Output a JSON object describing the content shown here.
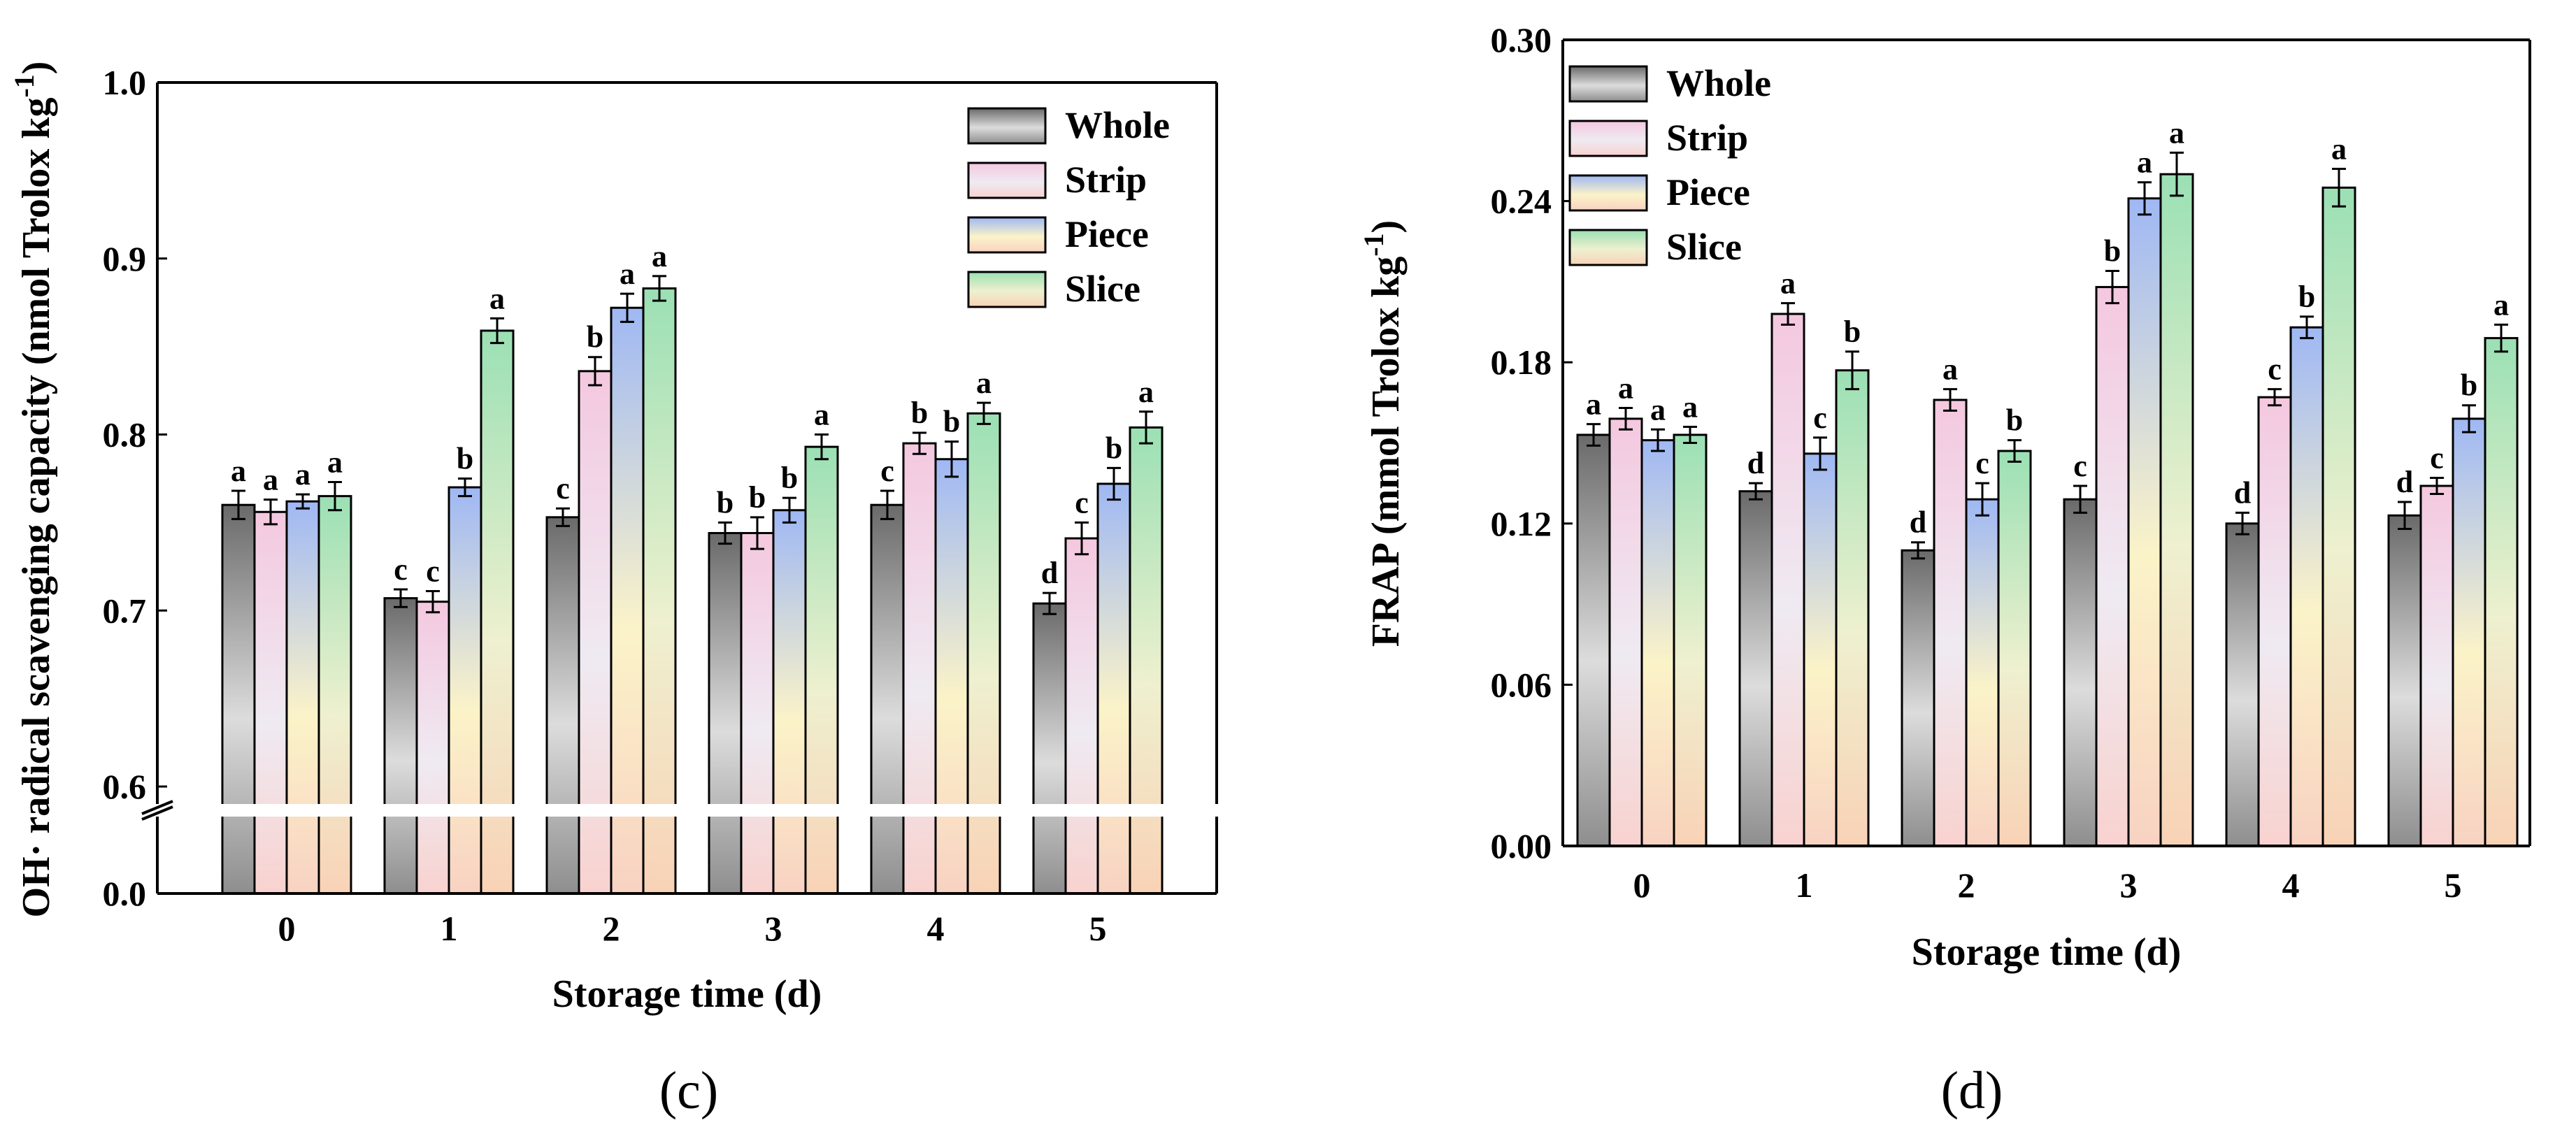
{
  "series_names": [
    "Whole",
    "Strip",
    "Piece",
    "Slice"
  ],
  "colors": {
    "Whole": [
      "#6a6a6a",
      "#dcdcdc",
      "#8e8e8e"
    ],
    "Strip": [
      "#f4c8df",
      "#efeaf2",
      "#f8d2cf"
    ],
    "Piece": [
      "#9fb8f4",
      "#fbf3c8",
      "#f8d2c2"
    ],
    "Slice": [
      "#9be0b4",
      "#eef0cf",
      "#f9d2b6"
    ]
  },
  "chart_data": [
    {
      "type": "bar",
      "panel": "(c)",
      "title": "",
      "xlabel": "Storage time (d)",
      "ylabel": "OH· radical scavenging capacity (nmol Trolox kg",
      "ylabel_sup": "-1",
      "ylabel_close": ")",
      "categories": [
        "0",
        "1",
        "2",
        "3",
        "4",
        "5"
      ],
      "ylim": [
        0.6,
        1.0
      ],
      "y_ticks": [
        "0.0",
        "0.6",
        "0.7",
        "0.8",
        "0.9",
        "1.0"
      ],
      "y_break": true,
      "legend_position": "top-right",
      "series": [
        {
          "name": "Whole",
          "values": [
            0.76,
            0.707,
            0.753,
            0.744,
            0.76,
            0.704
          ],
          "errors": [
            0.008,
            0.005,
            0.005,
            0.006,
            0.008,
            0.006
          ],
          "letters": [
            "a",
            "c",
            "c",
            "b",
            "c",
            "d"
          ]
        },
        {
          "name": "Strip",
          "values": [
            0.756,
            0.705,
            0.836,
            0.744,
            0.795,
            0.741
          ],
          "errors": [
            0.007,
            0.006,
            0.008,
            0.009,
            0.006,
            0.009
          ],
          "letters": [
            "a",
            "c",
            "b",
            "b",
            "b",
            "c"
          ]
        },
        {
          "name": "Piece",
          "values": [
            0.762,
            0.77,
            0.872,
            0.757,
            0.786,
            0.772
          ],
          "errors": [
            0.004,
            0.005,
            0.008,
            0.007,
            0.01,
            0.009
          ],
          "letters": [
            "a",
            "b",
            "a",
            "b",
            "b",
            "b"
          ]
        },
        {
          "name": "Slice",
          "values": [
            0.765,
            0.859,
            0.883,
            0.793,
            0.812,
            0.804
          ],
          "errors": [
            0.008,
            0.007,
            0.007,
            0.007,
            0.006,
            0.009
          ],
          "letters": [
            "a",
            "a",
            "a",
            "a",
            "a",
            "a"
          ]
        }
      ]
    },
    {
      "type": "bar",
      "panel": "(d)",
      "title": "",
      "xlabel": "Storage time (d)",
      "ylabel": "FRAP (mmol Trolox kg",
      "ylabel_sup": "-1",
      "ylabel_close": ")",
      "categories": [
        "0",
        "1",
        "2",
        "3",
        "4",
        "5"
      ],
      "ylim": [
        0.0,
        0.3
      ],
      "y_ticks": [
        "0.00",
        "0.06",
        "0.12",
        "0.18",
        "0.24",
        "0.30"
      ],
      "y_break": false,
      "legend_position": "top-left",
      "series": [
        {
          "name": "Whole",
          "values": [
            0.153,
            0.132,
            0.11,
            0.129,
            0.12,
            0.123
          ],
          "errors": [
            0.004,
            0.003,
            0.003,
            0.005,
            0.004,
            0.005
          ],
          "letters": [
            "a",
            "d",
            "d",
            "c",
            "d",
            "d"
          ]
        },
        {
          "name": "Strip",
          "values": [
            0.159,
            0.198,
            0.166,
            0.208,
            0.167,
            0.134
          ],
          "errors": [
            0.004,
            0.004,
            0.004,
            0.006,
            0.003,
            0.003
          ],
          "letters": [
            "a",
            "a",
            "a",
            "b",
            "c",
            "c"
          ]
        },
        {
          "name": "Piece",
          "values": [
            0.151,
            0.146,
            0.129,
            0.241,
            0.193,
            0.159
          ],
          "errors": [
            0.004,
            0.006,
            0.006,
            0.006,
            0.004,
            0.005
          ],
          "letters": [
            "a",
            "c",
            "c",
            "a",
            "b",
            "b"
          ]
        },
        {
          "name": "Slice",
          "values": [
            0.153,
            0.177,
            0.147,
            0.25,
            0.245,
            0.189
          ],
          "errors": [
            0.003,
            0.007,
            0.004,
            0.008,
            0.007,
            0.005
          ],
          "letters": [
            "a",
            "b",
            "b",
            "a",
            "a",
            "a"
          ]
        }
      ]
    }
  ]
}
